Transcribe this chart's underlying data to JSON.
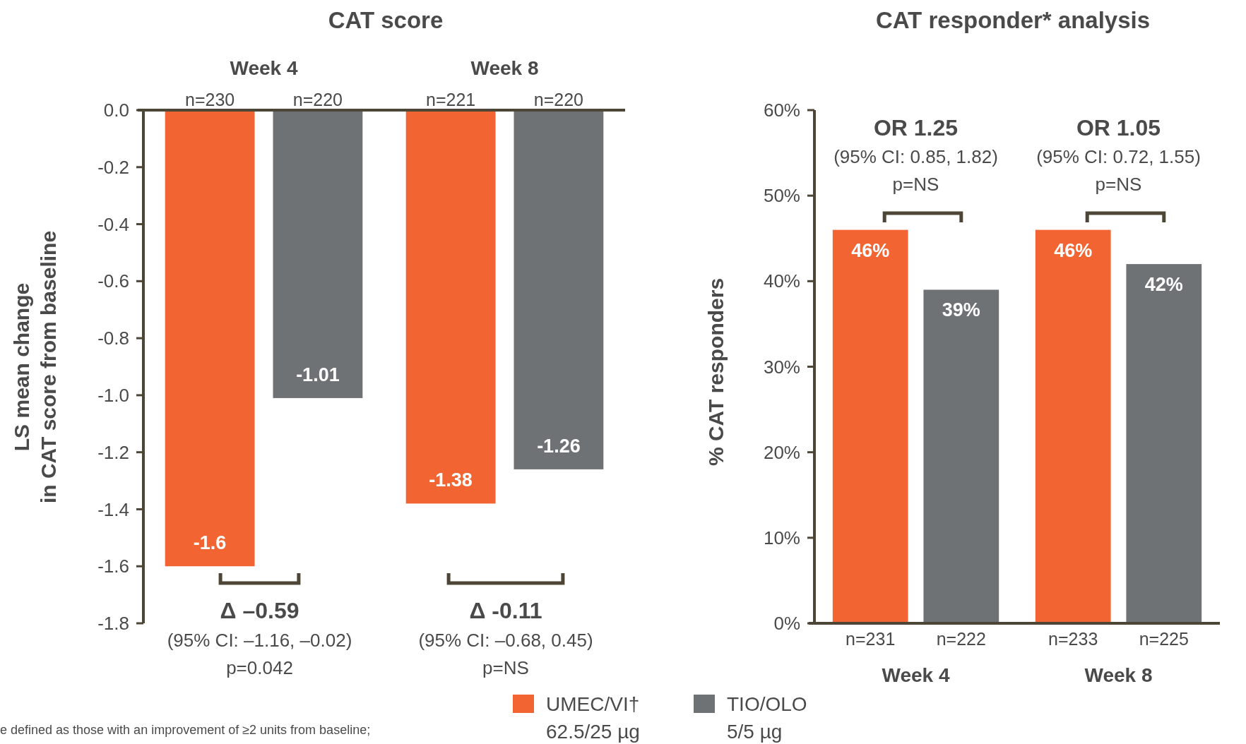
{
  "chart_data": [
    {
      "type": "bar",
      "title": "CAT score",
      "ylabel": "LS mean change\nin CAT score from baseline",
      "categories": [
        "Week 4",
        "Week 8"
      ],
      "series": [
        {
          "name": "UMEC/VI†\n62.5/25 µg",
          "color": "#f26532",
          "values": [
            -1.6,
            -1.38
          ]
        },
        {
          "name": "TIO/OLO\n5/5 µg",
          "color": "#6f7275",
          "values": [
            -1.01,
            -1.26
          ]
        }
      ],
      "ylim": [
        -1.8,
        0
      ],
      "yticks": [
        {
          "value": 0,
          "label": "0.0"
        },
        {
          "value": -0.2,
          "label": "-0.2"
        },
        {
          "value": -0.4,
          "label": "-0.4"
        },
        {
          "value": -0.6,
          "label": "-0.6"
        },
        {
          "value": -0.8,
          "label": "-0.8"
        },
        {
          "value": -1,
          "label": "-1.0"
        },
        {
          "value": -1.2,
          "label": "-1.2"
        },
        {
          "value": -1.4,
          "label": "-1.4"
        },
        {
          "value": -1.6,
          "label": "-1.6"
        },
        {
          "value": -1.8,
          "label": "-1.8"
        }
      ],
      "data_labels": true,
      "legend": "bottom",
      "grid": false,
      "annotations": [
        "n=230",
        "n=220",
        "n=221",
        "n=220",
        "Δ –0.59",
        "(95% CI: –1.16, –0.02)",
        "p=0.042",
        "Δ -0.11",
        "(95% CI: –0.68, 0.45)",
        "p=NS",
        "e defined as those with an improvement of ≥2 units from baseline;"
      ]
    },
    {
      "type": "bar",
      "title": "CAT responder* analysis",
      "ylabel": "% CAT responders",
      "categories": [
        "Week 4",
        "Week 8"
      ],
      "series": [
        {
          "color": "#f26532",
          "values": [
            46,
            46
          ],
          "value_labels": [
            "46%",
            "46%"
          ]
        },
        {
          "color": "#6f7275",
          "values": [
            39,
            42
          ],
          "value_labels": [
            "39%",
            "42%"
          ]
        }
      ],
      "ylim": [
        0,
        60
      ],
      "yticks": [
        {
          "value": 0,
          "label": "0%"
        },
        {
          "value": 10,
          "label": "10%"
        },
        {
          "value": 20,
          "label": "20%"
        },
        {
          "value": 30,
          "label": "30%"
        },
        {
          "value": 40,
          "label": "40%"
        },
        {
          "value": 50,
          "label": "50%"
        },
        {
          "value": 60,
          "label": "60%"
        }
      ],
      "grid": false,
      "annotations": [
        "n=231",
        "n=222",
        "n=233",
        "n=225",
        "OR 1.25",
        "(95% CI: 0.85, 1.82)",
        "p=NS",
        "OR 1.05",
        "(95% CI: 0.72, 1.55)",
        "p=NS"
      ]
    }
  ]
}
